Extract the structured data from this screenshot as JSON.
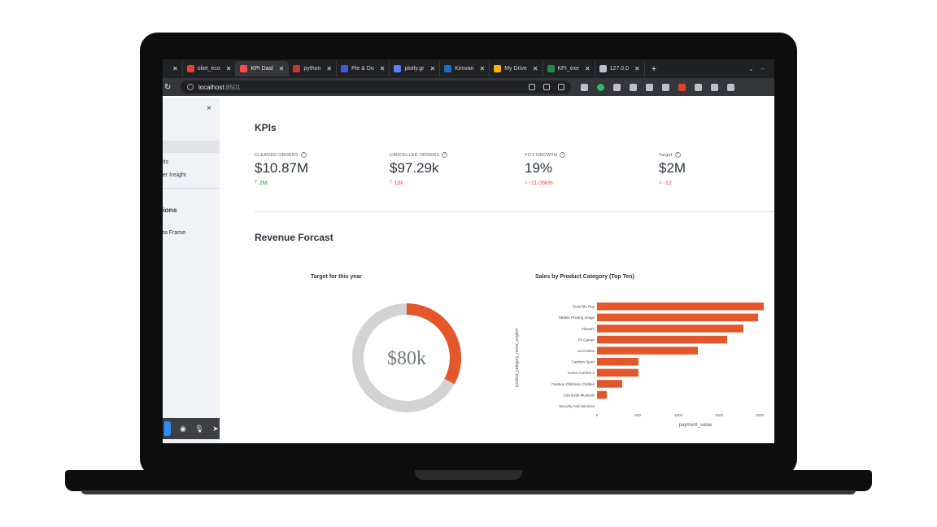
{
  "browser": {
    "tabs": [
      {
        "label": "",
        "color": "#888888",
        "active": false
      },
      {
        "label": "oliet_eco",
        "color": "#e0452b",
        "active": false
      },
      {
        "label": "KPI Dasl",
        "color": "#ff4b4b",
        "active": true
      },
      {
        "label": "python",
        "color": "#c0392b",
        "active": false
      },
      {
        "label": "Pie & Do",
        "color": "#3b5bdb",
        "active": false
      },
      {
        "label": "plotly.gr",
        "color": "#5c7cfa",
        "active": false
      },
      {
        "label": "Kimvan",
        "color": "#1971c2",
        "active": false
      },
      {
        "label": "My Drive",
        "color": "#f4b400",
        "active": false
      },
      {
        "label": "KPI_exe",
        "color": "#1e8e3e",
        "active": false
      },
      {
        "label": "127.0.0",
        "color": "#bdc1c6",
        "active": false
      }
    ],
    "new_tab": "+",
    "url_host": "localhost",
    "url_port": ":8501"
  },
  "sidebar": {
    "close": "×",
    "items": [
      {
        "label": "its",
        "top": 76
      },
      {
        "label": "er Insight",
        "top": 92
      },
      {
        "label": "ta Frame",
        "top": 164
      }
    ],
    "heading": "ions"
  },
  "kpis": {
    "title": "KPIs",
    "metrics": [
      {
        "label": "CLEARED ORDERS",
        "value": "$10.87M",
        "delta": "2M",
        "direction": "up"
      },
      {
        "label": "CANCELLED ORDERS",
        "value": "$97.29k",
        "delta": "13k",
        "direction": "up-red"
      },
      {
        "label": "YOY GROWTH",
        "value": "19%",
        "delta": "-11.06k%",
        "direction": "down"
      },
      {
        "label": "Target",
        "value": "$2M",
        "delta": "-12",
        "direction": "down"
      }
    ]
  },
  "revenue": {
    "title": "Revenue Forcast",
    "donut": {
      "title": "Target for this year",
      "center_label": "$80k",
      "fraction": 0.33,
      "fill_color": "#e3572b",
      "track_color": "#d3d3d3"
    }
  },
  "chart_data": {
    "type": "bar",
    "orientation": "horizontal",
    "title": "Sales by Product Category (Top Ten)",
    "xlabel": "payment_value",
    "ylabel": "product_category_name_english",
    "categories": [
      "Dvds Blu Ray",
      "Tablets Printing Image",
      "Flowers",
      "Pc Gamer",
      "La Cuisine",
      "Fashion Sport",
      "Home Comfort 2",
      "Fashion Childrens Clothes",
      "Cds Dvds Musicals",
      "Security And Services"
    ],
    "values": [
      2050,
      1980,
      1800,
      1600,
      1240,
      510,
      510,
      310,
      120,
      0
    ],
    "xticks": [
      0,
      500,
      1000,
      1500,
      2000
    ],
    "xlim": [
      0,
      2100
    ],
    "bar_color": "#e3572b"
  }
}
